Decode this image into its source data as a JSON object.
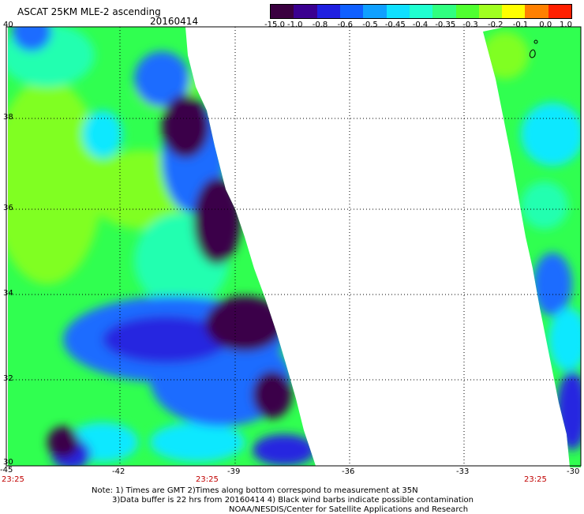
{
  "header": {
    "title": "ASCAT 25KM MLE-2 ascending",
    "date": "20160414"
  },
  "colorbar": {
    "labels": [
      "-15.0",
      "-1.0",
      "-0.8",
      "-0.6",
      "-0.5",
      "-0.45",
      "-0.4",
      "-0.35",
      "-0.3",
      "-0.2",
      "-0.1",
      "0.0",
      "1.0"
    ],
    "colors": [
      "#3a0040",
      "#3a0090",
      "#2020e0",
      "#1060ff",
      "#10a0ff",
      "#10e0ff",
      "#20ffd0",
      "#30ff80",
      "#50ff30",
      "#a0ff20",
      "#ffff00",
      "#ff8000",
      "#ff2000"
    ]
  },
  "axes": {
    "lat_labels": [
      "40",
      "38",
      "36",
      "34",
      "32",
      "30"
    ],
    "lon_labels": [
      "-45",
      "-42",
      "-39",
      "-36",
      "-33",
      "-30"
    ],
    "time_labels": [
      "23:25",
      "23:25",
      "23:25"
    ]
  },
  "notes": {
    "line1": "Note: 1) Times are GMT 2)Times along bottom correspond to measurement at 35N",
    "line2": "3)Data buffer is 22 hrs from 20160414 4) Black wind barbs indicate possible contamination",
    "line3": "NOAA/NESDIS/Center for Satellite Applications and Research"
  },
  "colors": {
    "deep_purple": "#3a0048",
    "blue": "#2828e0",
    "mid_blue": "#1a6cff",
    "cyan": "#10e8ff",
    "aqua_green": "#20ffb0",
    "green": "#30ff50",
    "lime": "#80ff20"
  }
}
